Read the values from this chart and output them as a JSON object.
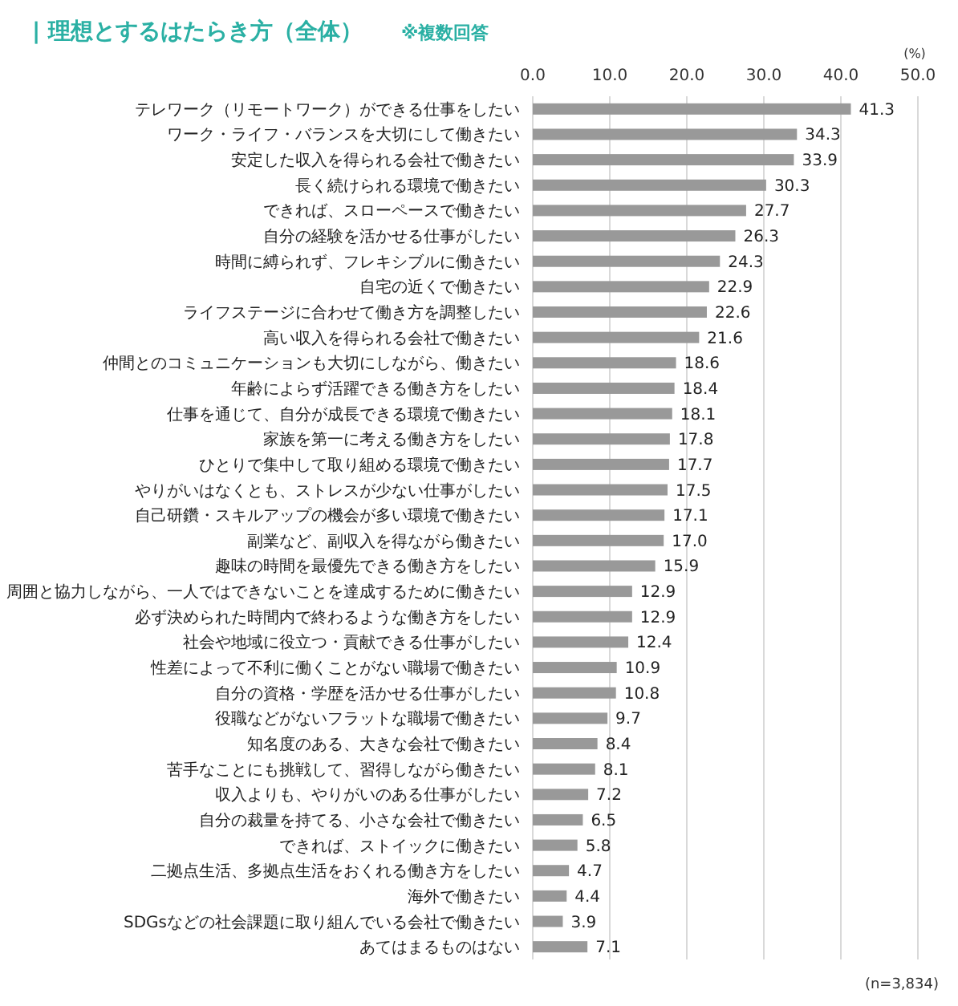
{
  "chart_data": {
    "type": "bar",
    "orientation": "horizontal",
    "title": "| 理想とするはたらき方（全体）",
    "subtitle": "※複数回答",
    "xlabel": "(%)",
    "categories": [
      "テレワーク（リモートワーク）ができる仕事をしたい",
      "ワーク・ライフ・バランスを大切にして働きたい",
      "安定した収入を得られる会社で働きたい",
      "長く続けられる環境で働きたい",
      "できれば、スローペースで働きたい",
      "自分の経験を活かせる仕事がしたい",
      "時間に縛られず、フレキシブルに働きたい",
      "自宅の近くで働きたい",
      "ライフステージに合わせて働き方を調整したい",
      "高い収入を得られる会社で働きたい",
      "仲間とのコミュニケーションも大切にしながら、働きたい",
      "年齢によらず活躍できる働き方をしたい",
      "仕事を通じて、自分が成長できる環境で働きたい",
      "家族を第一に考える働き方をしたい",
      "ひとりで集中して取り組める環境で働きたい",
      "やりがいはなくとも、ストレスが少ない仕事がしたい",
      "自己研鑽・スキルアップの機会が多い環境で働きたい",
      "副業など、副収入を得ながら働きたい",
      "趣味の時間を最優先できる働き方をしたい",
      "周囲と協力しながら、一人ではできないことを達成するために働きたい",
      "必ず決められた時間内で終わるような働き方をしたい",
      "社会や地域に役立つ・貢献できる仕事がしたい",
      "性差によって不利に働くことがない職場で働きたい",
      "自分の資格・学歴を活かせる仕事がしたい",
      "役職などがないフラットな職場で働きたい",
      "知名度のある、大きな会社で働きたい",
      "苦手なことにも挑戦して、習得しながら働きたい",
      "収入よりも、やりがいのある仕事がしたい",
      "自分の裁量を持てる、小さな会社で働きたい",
      "できれば、ストイックに働きたい",
      "二拠点生活、多拠点生活をおくれる働き方をしたい",
      "海外で働きたい",
      "SDGsなどの社会課題に取り組んでいる会社で働きたい",
      "あてはまるものはない"
    ],
    "values": [
      41.3,
      34.3,
      33.9,
      30.3,
      27.7,
      26.3,
      24.3,
      22.9,
      22.6,
      21.6,
      18.6,
      18.4,
      18.1,
      17.8,
      17.7,
      17.5,
      17.1,
      17.0,
      15.9,
      12.9,
      12.9,
      12.4,
      10.9,
      10.8,
      9.7,
      8.4,
      8.1,
      7.2,
      6.5,
      5.8,
      4.7,
      4.4,
      3.9,
      7.1
    ],
    "value_labels": [
      "41.3",
      "34.3",
      "33.9",
      "30.3",
      "27.7",
      "26.3",
      "24.3",
      "22.9",
      "22.6",
      "21.6",
      "18.6",
      "18.4",
      "18.1",
      "17.8",
      "17.7",
      "17.5",
      "17.1",
      "17.0",
      "15.9",
      "12.9",
      "12.9",
      "12.4",
      "10.9",
      "10.8",
      "9.7",
      "8.4",
      "8.1",
      "7.2",
      "6.5",
      "5.8",
      "4.7",
      "4.4",
      "3.9",
      "7.1"
    ],
    "color": "#999999",
    "grid": "x",
    "xlim": [
      0,
      50
    ],
    "xticks": [
      {
        "value": 0,
        "label": "0.0"
      },
      {
        "value": 10,
        "label": "10.0"
      },
      {
        "value": 20,
        "label": "20.0"
      },
      {
        "value": 30,
        "label": "30.0"
      },
      {
        "value": 40,
        "label": "40.0"
      },
      {
        "value": 50,
        "label": "50.0"
      }
    ],
    "annotations": [
      "(n=3,834)"
    ]
  }
}
